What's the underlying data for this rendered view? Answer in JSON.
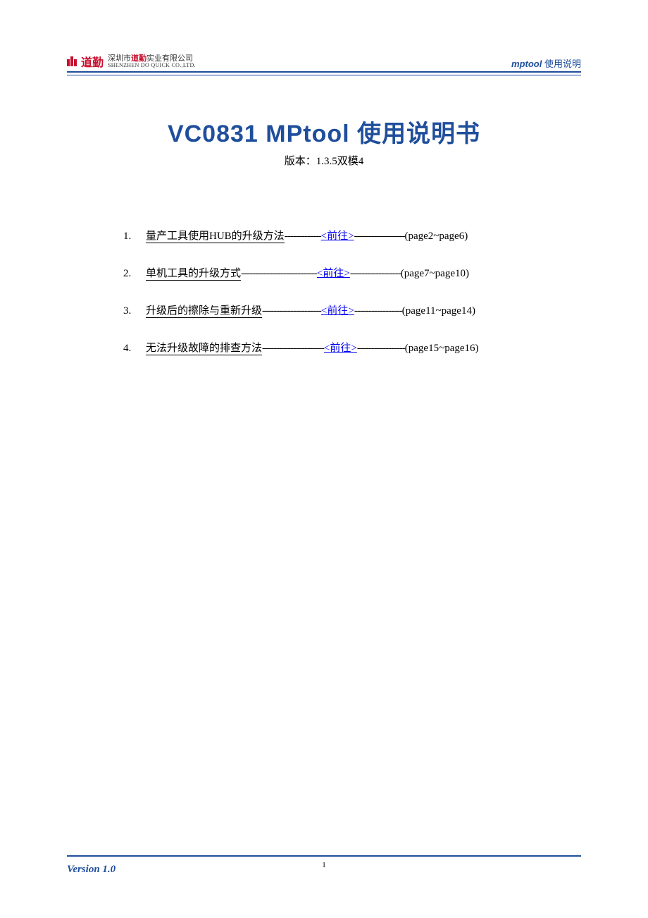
{
  "header": {
    "logo_cn": "道勤",
    "company_cn_prefix": "深圳市",
    "company_cn_red": "道勤",
    "company_cn_suffix": "实业有限公司",
    "company_en": "SHENZHEN DO QUICK CO.,LTD.",
    "right_tool": "mptool",
    "right_label": "使用说明"
  },
  "title": {
    "en": "VC0831 MPtool",
    "cn": "使用说明书",
    "version_label": "版本：",
    "version_value": "1.3.5双模4"
  },
  "toc": [
    {
      "num": "1.",
      "text": "量产工具使用HUB的升级方法",
      "dashes_before": "-------------",
      "link": "<前往>",
      "dashes_after": "------------------",
      "pages": "(page2~page6)"
    },
    {
      "num": "2.",
      "text": "单机工具的升级方式",
      "dashes_before": "---------------------------",
      "link": "<前往>",
      "dashes_after": "------------------",
      "pages": "(page7~page10)"
    },
    {
      "num": "3.",
      "text": "升级后的擦除与重新升级",
      "dashes_before": "---------------------",
      "link": "<前往>",
      "dashes_after": "-----------------",
      "pages": "(page11~page14)"
    },
    {
      "num": "4.",
      "text": "无法升级故障的排查方法",
      "dashes_before": "----------------------",
      "link": "<前往>",
      "dashes_after": "-----------------",
      "pages": "(page15~page16)"
    }
  ],
  "footer": {
    "version": "Version 1.0",
    "pagenum": "1"
  },
  "colors": {
    "primary_blue": "#1f4e9c",
    "logo_red": "#c8102e",
    "link_blue": "#0000ee",
    "text_black": "#000000",
    "background": "#ffffff"
  }
}
